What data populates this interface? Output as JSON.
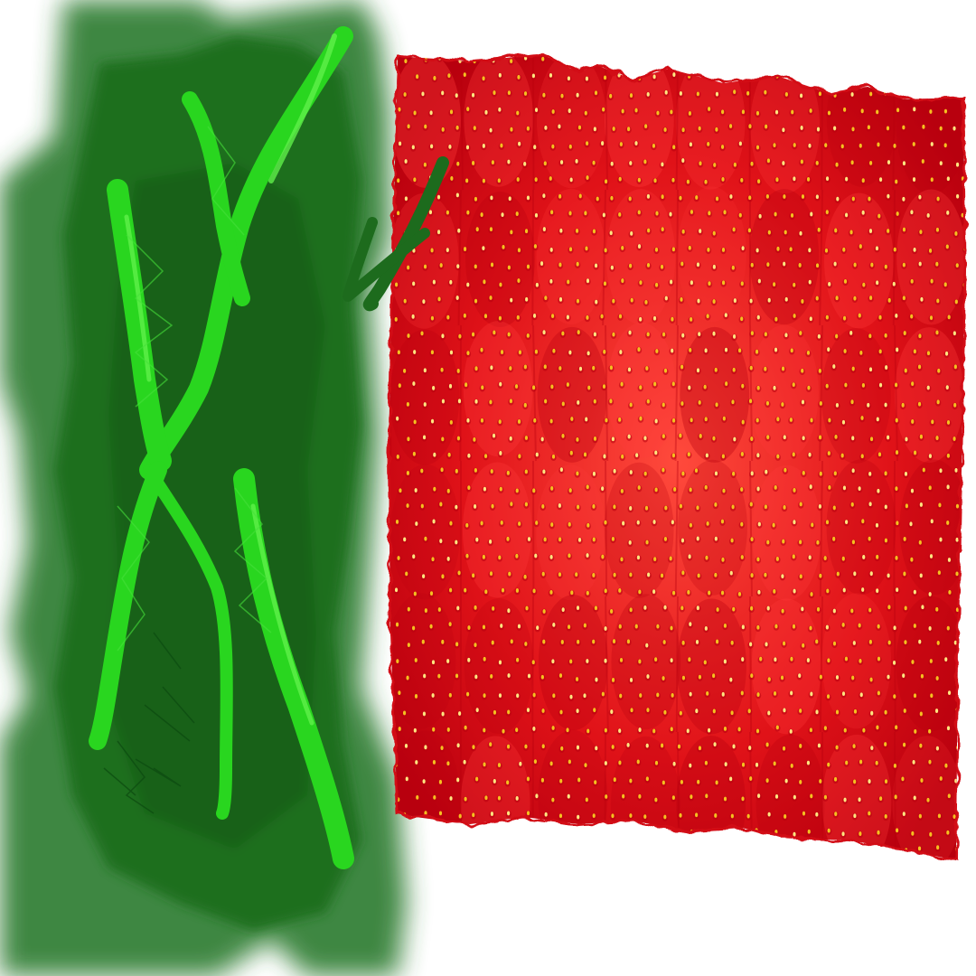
{
  "colors": {
    "background": "#ffffff",
    "leaf_dark": "#1f6e1f",
    "leaf_mid": "#2f7d32",
    "leaf_shadow": "#0f5a12",
    "leaf_bright": "#29d61f",
    "leaf_highlight": "#5ff04a",
    "strawberry_base": "#e01218",
    "strawberry_deep": "#b8000e",
    "strawberry_light": "#ff3a3a",
    "seed": "#f5c020",
    "seed_light": "#ffe680",
    "stem": "#1d6b1d"
  },
  "scene": {
    "leaf_panel": "green-leaf-painting",
    "strawberry_panel": "strawberry-texture-tiles",
    "stem_mark": "green-stem-strokes"
  }
}
